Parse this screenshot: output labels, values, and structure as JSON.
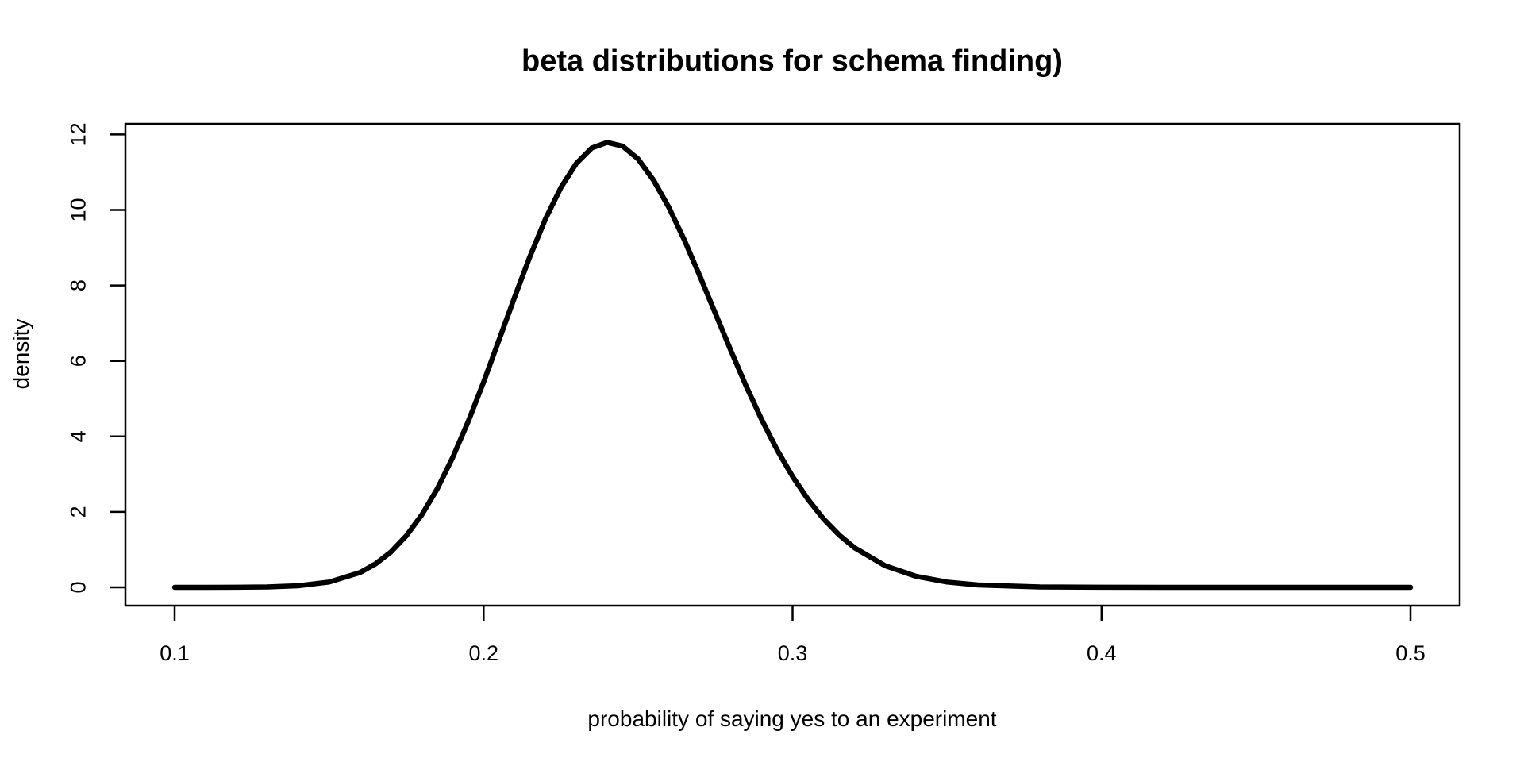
{
  "chart_data": {
    "type": "line",
    "title": "beta distributions for schema finding)",
    "xlabel": "probability of saying yes to an experiment",
    "ylabel": "density",
    "xlim": [
      0.1,
      0.5
    ],
    "ylim": [
      0,
      12
    ],
    "grid": false,
    "legend_position": "none",
    "line_color": "#000000",
    "line_width": 6.5,
    "background_color": "#ffffff",
    "peak": {
      "x": 0.24,
      "y": 11.8
    },
    "x_ticks": {
      "values": [
        0.1,
        0.2,
        0.3,
        0.4,
        0.5
      ],
      "labels": [
        "0.1",
        "0.2",
        "0.3",
        "0.4",
        "0.5"
      ]
    },
    "y_ticks": {
      "values": [
        0,
        2,
        4,
        6,
        8,
        10,
        12
      ],
      "labels": [
        "0",
        "2",
        "4",
        "6",
        "8",
        "10",
        "12"
      ]
    },
    "x": [
      0.1,
      0.11,
      0.12,
      0.13,
      0.14,
      0.15,
      0.16,
      0.165,
      0.17,
      0.175,
      0.18,
      0.185,
      0.19,
      0.195,
      0.2,
      0.205,
      0.21,
      0.215,
      0.22,
      0.225,
      0.23,
      0.235,
      0.24,
      0.245,
      0.25,
      0.255,
      0.26,
      0.265,
      0.27,
      0.275,
      0.28,
      0.285,
      0.29,
      0.295,
      0.3,
      0.305,
      0.31,
      0.315,
      0.32,
      0.33,
      0.34,
      0.35,
      0.36,
      0.38,
      0.4,
      0.42,
      0.44,
      0.46,
      0.48,
      0.5
    ],
    "series": [
      {
        "name": "density",
        "values": [
          0.0,
          0.0,
          0.002,
          0.01,
          0.042,
          0.141,
          0.394,
          0.62,
          0.937,
          1.367,
          1.923,
          2.613,
          3.441,
          4.392,
          5.441,
          6.555,
          7.681,
          8.766,
          9.755,
          10.59,
          11.23,
          11.64,
          11.79,
          11.69,
          11.35,
          10.79,
          10.06,
          9.198,
          8.249,
          7.261,
          6.277,
          5.329,
          4.446,
          3.645,
          2.939,
          2.33,
          1.816,
          1.395,
          1.053,
          0.573,
          0.293,
          0.141,
          0.064,
          0.011,
          0.002,
          0.0,
          0.0,
          0.0,
          0.0,
          0.0
        ]
      }
    ]
  }
}
